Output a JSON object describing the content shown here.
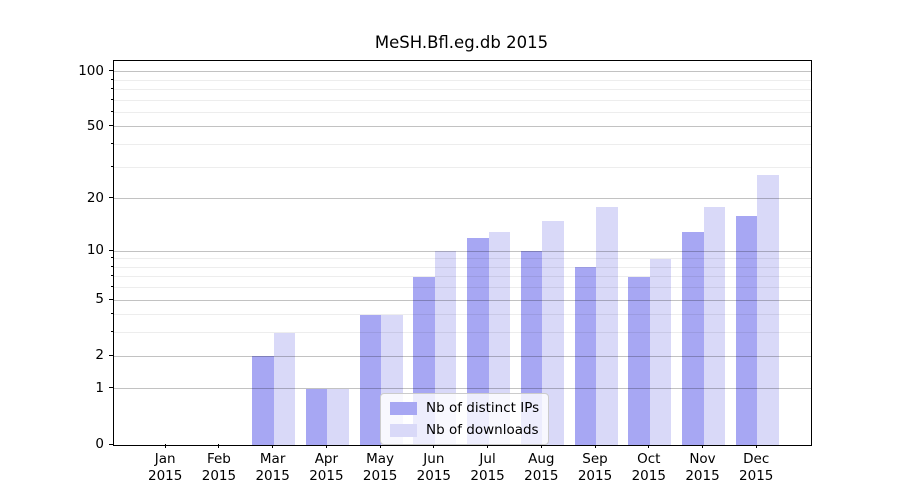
{
  "title": "MeSH.Bfl.eg.db 2015",
  "chart_data": {
    "type": "bar",
    "title": "MeSH.Bfl.eg.db 2015",
    "categories": [
      "Jan 2015",
      "Feb 2015",
      "Mar 2015",
      "Apr 2015",
      "May 2015",
      "Jun 2015",
      "Jul 2015",
      "Aug 2015",
      "Sep 2015",
      "Oct 2015",
      "Nov 2015",
      "Dec 2015"
    ],
    "months": [
      "Jan",
      "Feb",
      "Mar",
      "Apr",
      "May",
      "Jun",
      "Jul",
      "Aug",
      "Sep",
      "Oct",
      "Nov",
      "Dec"
    ],
    "year": "2015",
    "series": [
      {
        "name": "Nb of distinct IPs",
        "color": "#a7a7f3",
        "values": [
          0,
          0,
          2,
          1,
          4,
          7,
          12,
          10,
          8,
          7,
          13,
          16
        ]
      },
      {
        "name": "Nb of downloads",
        "color": "#d9d9f8",
        "values": [
          0,
          0,
          3,
          1,
          4,
          10,
          13,
          15,
          18,
          9,
          18,
          27
        ]
      }
    ],
    "xlabel": "",
    "ylabel": "",
    "yscale": "log1p",
    "y_ticks": [
      0,
      1,
      2,
      5,
      10,
      20,
      50,
      100
    ],
    "y_minor_gridlines": [
      3,
      4,
      6,
      7,
      8,
      9,
      30,
      40,
      60,
      70,
      80,
      90
    ],
    "ylim": [
      0,
      114
    ],
    "grid": "both",
    "legend_position": "lower center",
    "colors": {
      "major_grid": "#c2c2c2",
      "minor_grid": "#ececec",
      "spine": "#000000",
      "background": "#ffffff"
    }
  }
}
